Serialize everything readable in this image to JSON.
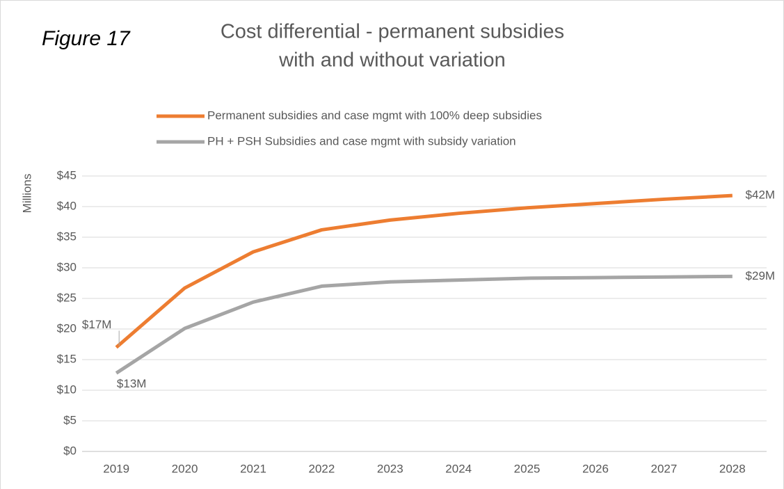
{
  "chart_data": {
    "type": "line",
    "annotation": "Figure 17",
    "title": [
      "Cost differential - permanent subsidies",
      "with and without variation"
    ],
    "y_label": "Millions",
    "categories": [
      "2019",
      "2020",
      "2021",
      "2022",
      "2023",
      "2024",
      "2025",
      "2026",
      "2027",
      "2028"
    ],
    "series": [
      {
        "name": "Permanent subsidies and case mgmt with 100% deep subsidies",
        "color": "#ed7d31",
        "values": [
          17,
          26.7,
          32.6,
          36.2,
          37.8,
          38.9,
          39.8,
          40.5,
          41.2,
          41.8
        ],
        "value_labels": [
          "$17M",
          null,
          null,
          null,
          null,
          null,
          null,
          null,
          null,
          "$42M"
        ]
      },
      {
        "name": "PH + PSH Subsidies and case mgmt  with subsidy variation",
        "color": "#a5a5a5",
        "values": [
          12.8,
          20.1,
          24.4,
          27.0,
          27.7,
          28.0,
          28.3,
          28.4,
          28.5,
          28.6
        ],
        "value_labels": [
          "$13M",
          null,
          null,
          null,
          null,
          null,
          null,
          null,
          null,
          "$29M"
        ]
      }
    ],
    "ylim": [
      0,
      45
    ],
    "yticks": [
      {
        "value": 0,
        "label": "$0"
      },
      {
        "value": 5,
        "label": "$5"
      },
      {
        "value": 10,
        "label": "$10"
      },
      {
        "value": 15,
        "label": "$15"
      },
      {
        "value": 20,
        "label": "$20"
      },
      {
        "value": 25,
        "label": "$25"
      },
      {
        "value": 30,
        "label": "$30"
      },
      {
        "value": 35,
        "label": "$35"
      },
      {
        "value": 40,
        "label": "$40"
      },
      {
        "value": 45,
        "label": "$45"
      }
    ],
    "grid": true,
    "legend": "top"
  }
}
